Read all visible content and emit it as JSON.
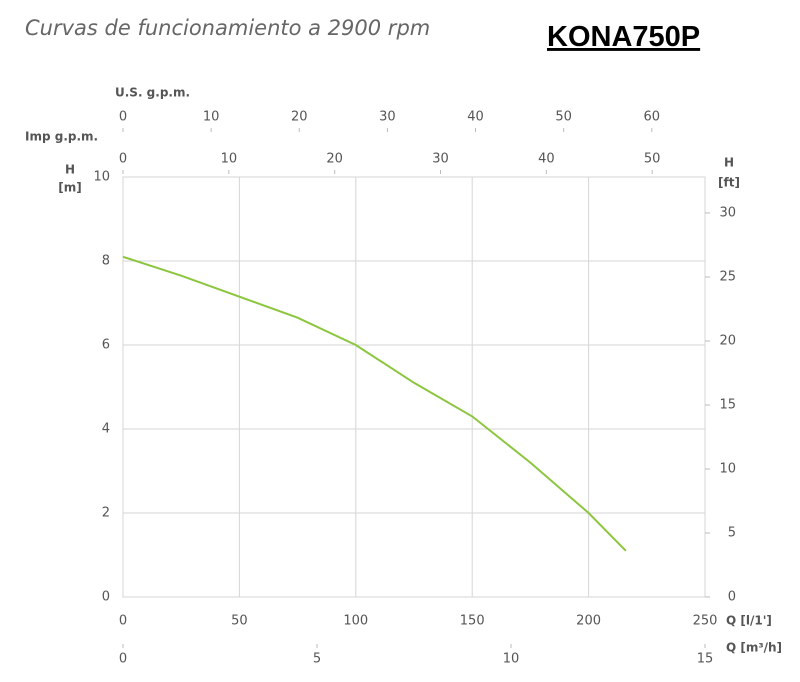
{
  "chart_data": {
    "type": "line",
    "title": "Curvas de funcionamiento a 2900 rpm",
    "model": "KONA750P",
    "x": [
      0,
      25,
      50,
      75,
      100,
      125,
      150,
      175,
      200,
      216
    ],
    "values": [
      8.1,
      7.65,
      7.15,
      6.65,
      6.0,
      5.1,
      4.3,
      3.2,
      2.0,
      1.1
    ],
    "color": "#8cc63e",
    "x_label": "Q [l/1']",
    "xlim": [
      0,
      250
    ],
    "xticks": [
      0,
      50,
      100,
      150,
      200,
      250
    ],
    "y_label": {
      "symbol": "H",
      "unit": "[m]"
    },
    "ylim": [
      0,
      10
    ],
    "yticks": [
      0,
      2,
      4,
      6,
      8,
      10
    ],
    "y2_label": {
      "symbol": "H",
      "unit": "[ft]"
    },
    "y2lim": [
      0,
      32.81
    ],
    "y2ticks": [
      0,
      5,
      10,
      15,
      20,
      25,
      30
    ],
    "grid": true,
    "secondary_x_axes": [
      {
        "label": "Q [m³/h]",
        "position": "bottom",
        "lim": [
          0,
          15
        ],
        "ticks": [
          0,
          5,
          10,
          15
        ]
      },
      {
        "label": "U.S. g.p.m.",
        "position": "top",
        "lim": [
          0,
          66.04
        ],
        "ticks": [
          0,
          10,
          20,
          30,
          40,
          50,
          60
        ]
      },
      {
        "label": "Imp g.p.m.",
        "position": "top",
        "lim": [
          0,
          54.99
        ],
        "ticks": [
          0,
          10,
          20,
          30,
          40,
          50
        ]
      }
    ]
  }
}
